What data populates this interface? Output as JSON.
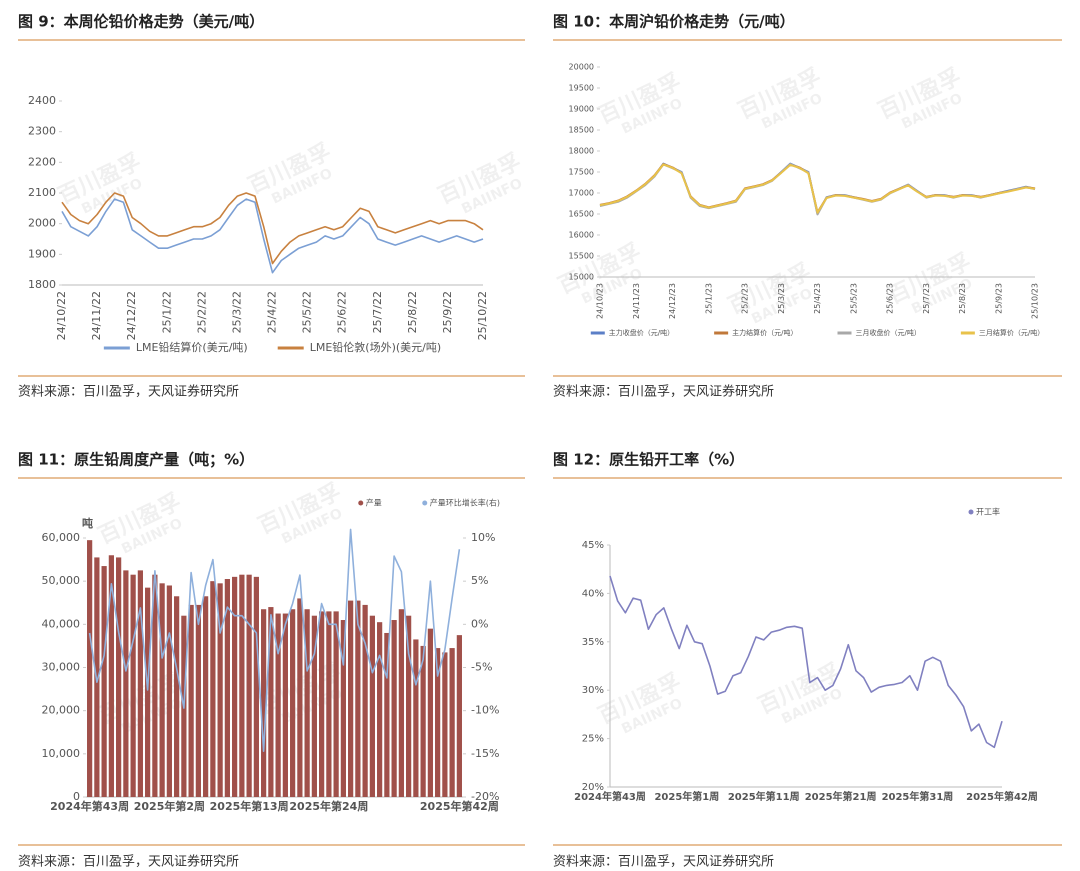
{
  "watermark": {
    "cn": "百川盈孚",
    "en": "BAIINFO"
  },
  "chart_data": [
    {
      "type": "line",
      "title": "图 9：本周伦铅价格走势（美元/吨）",
      "source": "资料来源：百川盈孚，天风证券研究所",
      "categories": [
        "24/10/22",
        null,
        null,
        null,
        "24/11/22",
        null,
        null,
        null,
        "24/12/22",
        null,
        null,
        null,
        "25/1/22",
        null,
        null,
        null,
        "25/2/22",
        null,
        null,
        null,
        "25/3/22",
        null,
        null,
        null,
        "25/4/22",
        null,
        null,
        null,
        "25/5/22",
        null,
        null,
        null,
        "25/6/22",
        null,
        null,
        null,
        "25/7/22",
        null,
        null,
        null,
        "25/8/22",
        null,
        null,
        null,
        "25/9/22",
        null,
        null,
        null,
        "25/10/22"
      ],
      "series": [
        {
          "name": "LME铅结算价(美元/吨)",
          "color": "#7b9fd4",
          "values": [
            2040,
            1990,
            1975,
            1960,
            1990,
            2040,
            2080,
            2070,
            1980,
            1960,
            1940,
            1920,
            1920,
            1930,
            1940,
            1950,
            1950,
            1960,
            1980,
            2020,
            2060,
            2080,
            2070,
            1950,
            1840,
            1880,
            1900,
            1920,
            1930,
            1940,
            1960,
            1950,
            1960,
            1990,
            2020,
            2000,
            1950,
            1940,
            1930,
            1940,
            1950,
            1960,
            1950,
            1940,
            1950,
            1960,
            1950,
            1940,
            1950
          ]
        },
        {
          "name": "LME铅伦敦(场外)(美元/吨)",
          "color": "#c8813f",
          "values": [
            2070,
            2030,
            2010,
            2000,
            2030,
            2070,
            2100,
            2090,
            2020,
            2000,
            1975,
            1960,
            1960,
            1970,
            1980,
            1990,
            1990,
            2000,
            2020,
            2060,
            2090,
            2100,
            2090,
            1990,
            1870,
            1910,
            1940,
            1960,
            1970,
            1980,
            1990,
            1980,
            1990,
            2020,
            2050,
            2040,
            1990,
            1980,
            1970,
            1980,
            1990,
            2000,
            2010,
            2000,
            2010,
            2010,
            2010,
            2000,
            1980
          ]
        }
      ],
      "ylim": [
        1800,
        2400
      ],
      "yticks": [
        1800,
        1900,
        2000,
        2100,
        2200,
        2300,
        2400
      ],
      "legend": "bottom",
      "grid": false
    },
    {
      "type": "line",
      "title": "图 10：本周沪铅价格走势（元/吨）",
      "source": "资料来源：百川盈孚，天风证券研究所",
      "categories": [
        "24/10/23",
        null,
        null,
        null,
        "24/11/23",
        null,
        null,
        null,
        "24/12/23",
        null,
        null,
        null,
        "25/1/23",
        null,
        null,
        null,
        "25/2/23",
        null,
        null,
        null,
        "25/3/23",
        null,
        null,
        null,
        "25/4/23",
        null,
        null,
        null,
        "25/5/23",
        null,
        null,
        null,
        "25/6/23",
        null,
        null,
        null,
        "25/7/23",
        null,
        null,
        null,
        "25/8/23",
        null,
        null,
        null,
        "25/9/23",
        null,
        null,
        null,
        "25/10/23"
      ],
      "series": [
        {
          "name": "主力收盘价（元/吨）",
          "color": "#5b7fc7",
          "values": [
            16700,
            16750,
            16800,
            16900,
            17050,
            17200,
            17400,
            17700,
            17600,
            17500,
            16900,
            16700,
            16650,
            16700,
            16750,
            16800,
            17100,
            17150,
            17200,
            17300,
            17500,
            17700,
            17600,
            17500,
            16500,
            16900,
            16950,
            16950,
            16900,
            16850,
            16800,
            16850,
            17000,
            17100,
            17200,
            17050,
            16900,
            16950,
            16950,
            16900,
            16950,
            16950,
            16900,
            16950,
            17000,
            17050,
            17100,
            17150,
            17100
          ]
        },
        {
          "name": "主力结算价（元/吨）",
          "color": "#c0783a",
          "values": [
            16720,
            16760,
            16820,
            16920,
            17060,
            17220,
            17420,
            17690,
            17610,
            17480,
            16920,
            16720,
            16660,
            16710,
            16760,
            16820,
            17110,
            17160,
            17210,
            17310,
            17490,
            17680,
            17610,
            17480,
            16540,
            16890,
            16950,
            16940,
            16900,
            16860,
            16810,
            16860,
            17010,
            17100,
            17190,
            17040,
            16910,
            16950,
            16940,
            16910,
            16950,
            16940,
            16910,
            16950,
            17000,
            17040,
            17090,
            17140,
            17110
          ]
        },
        {
          "name": "三月收盘价（元/吨）",
          "color": "#a8a8a8",
          "values": [
            16690,
            16740,
            16790,
            16890,
            17040,
            17190,
            17390,
            17680,
            17590,
            17490,
            16890,
            16690,
            16640,
            16690,
            16740,
            16790,
            17090,
            17140,
            17190,
            17290,
            17490,
            17690,
            17590,
            17490,
            16490,
            16890,
            16940,
            16940,
            16890,
            16840,
            16790,
            16840,
            16990,
            17090,
            17190,
            17040,
            16890,
            16940,
            16940,
            16890,
            16940,
            16940,
            16890,
            16940,
            16990,
            17040,
            17090,
            17140,
            17090
          ]
        },
        {
          "name": "三月结算价（元/吨）",
          "color": "#e8c24a",
          "values": [
            16710,
            16750,
            16810,
            16910,
            17050,
            17210,
            17410,
            17680,
            17600,
            17470,
            16910,
            16710,
            16650,
            16700,
            16750,
            16810,
            17100,
            17150,
            17200,
            17300,
            17480,
            17670,
            17600,
            17470,
            16530,
            16880,
            16940,
            16930,
            16890,
            16850,
            16800,
            16850,
            17000,
            17090,
            17180,
            17030,
            16900,
            16940,
            16930,
            16900,
            16940,
            16930,
            16900,
            16940,
            16990,
            17030,
            17080,
            17130,
            17100
          ]
        }
      ],
      "ylim": [
        15000,
        20000
      ],
      "yticks": [
        15000,
        15500,
        16000,
        16500,
        17000,
        17500,
        18000,
        18500,
        19000,
        19500,
        20000
      ],
      "legend": "bottom",
      "grid": false
    },
    {
      "type": "combo",
      "title": "图 11：原生铅周度产量（吨；%）",
      "source": "资料来源：百川盈孚，天风证券研究所",
      "ylabel": "吨",
      "categories": [
        "2024年第43周",
        null,
        null,
        null,
        null,
        null,
        null,
        null,
        null,
        null,
        null,
        "2025年第2周",
        null,
        null,
        null,
        null,
        null,
        null,
        null,
        null,
        null,
        null,
        "2025年第13周",
        null,
        null,
        null,
        null,
        null,
        null,
        null,
        null,
        null,
        null,
        "2025年第24周",
        null,
        null,
        null,
        null,
        null,
        null,
        null,
        null,
        null,
        null,
        null,
        null,
        null,
        null,
        null,
        null,
        null,
        "2025年第42周"
      ],
      "series": [
        {
          "name": "产量",
          "type": "bar",
          "color": "#a0504a",
          "values": [
            59500,
            55500,
            53500,
            56000,
            55500,
            52500,
            51500,
            52500,
            48500,
            51500,
            49500,
            49000,
            46500,
            42000,
            44500,
            44500,
            46500,
            50000,
            49500,
            50500,
            51000,
            51500,
            51500,
            51000,
            43500,
            44000,
            42500,
            42500,
            43500,
            46000,
            43500,
            42000,
            43000,
            43000,
            43000,
            41000,
            45500,
            45500,
            44500,
            42000,
            40500,
            38000,
            41000,
            43500,
            42000,
            36500,
            35000,
            39000,
            34500,
            33500,
            34500,
            37500
          ]
        },
        {
          "name": "产量环比增长率(右)",
          "type": "line",
          "axis": "y2",
          "color": "#8fb0dc",
          "values": [
            -1.0,
            -6.7,
            -3.6,
            4.7,
            -0.9,
            -5.4,
            -1.9,
            1.9,
            -7.6,
            6.2,
            -3.9,
            -1.0,
            -5.1,
            -9.7,
            6.0,
            0.0,
            4.5,
            7.5,
            -1.0,
            2.0,
            1.0,
            1.0,
            0.0,
            -1.0,
            -14.7,
            1.1,
            -3.4,
            0.0,
            2.4,
            5.7,
            -5.4,
            -3.4,
            2.4,
            0.0,
            0.0,
            -4.7,
            11.0,
            0.0,
            -2.2,
            -5.6,
            -3.6,
            -6.2,
            7.9,
            6.1,
            -3.4,
            -7.0,
            -4.1,
            5.0,
            -6.0,
            -2.9,
            3.0,
            8.7
          ]
        }
      ],
      "ylim": [
        0,
        60000
      ],
      "yticks": [
        0,
        {
          "value": 10000,
          "label": "10,000"
        },
        {
          "value": 20000,
          "label": "20,000"
        },
        {
          "value": 30000,
          "label": "30,000"
        },
        {
          "value": 40000,
          "label": "40,000"
        },
        {
          "value": 50000,
          "label": "50,000"
        },
        {
          "value": 60000,
          "label": "60,000"
        }
      ],
      "y2lim": [
        -20,
        10
      ],
      "y2ticks": [
        {
          "value": -20,
          "label": "-20%"
        },
        {
          "value": -15,
          "label": "-15%"
        },
        {
          "value": -10,
          "label": "-10%"
        },
        {
          "value": -5,
          "label": "-5%"
        },
        {
          "value": 0,
          "label": "0%"
        },
        {
          "value": 5,
          "label": "5%"
        },
        {
          "value": 10,
          "label": "10%"
        }
      ],
      "legend": "top-right",
      "grid": false
    },
    {
      "type": "line",
      "title": "图 12：原生铅开工率（%）",
      "source": "资料来源：百川盈孚，天风证券研究所",
      "categories": [
        "2024年第43周",
        null,
        null,
        null,
        null,
        null,
        null,
        null,
        null,
        null,
        "2025年第1周",
        null,
        null,
        null,
        null,
        null,
        null,
        null,
        null,
        null,
        "2025年第11周",
        null,
        null,
        null,
        null,
        null,
        null,
        null,
        null,
        null,
        "2025年第21周",
        null,
        null,
        null,
        null,
        null,
        null,
        null,
        null,
        null,
        "2025年第31周",
        null,
        null,
        null,
        null,
        null,
        null,
        null,
        null,
        null,
        null,
        "2025年第42周"
      ],
      "series": [
        {
          "name": "开工率",
          "color": "#8080c0",
          "values": [
            41.8,
            39.2,
            38,
            39.5,
            39.3,
            36.3,
            37.8,
            38.5,
            36.3,
            34.3,
            36.7,
            35,
            34.8,
            32.5,
            29.6,
            29.9,
            31.5,
            31.8,
            33.5,
            35.5,
            35.2,
            36,
            36.2,
            36.5,
            36.6,
            36.4,
            30.8,
            31.3,
            30,
            30.5,
            32.2,
            34.7,
            32,
            31.3,
            29.8,
            30.3,
            30.5,
            30.6,
            30.8,
            31.5,
            30,
            33,
            33.4,
            33,
            30.5,
            29.5,
            28.3,
            25.8,
            26.5,
            24.6,
            24.1,
            26.8
          ]
        }
      ],
      "ylim": [
        20,
        45
      ],
      "yticks": [
        {
          "value": 20,
          "label": "20%"
        },
        {
          "value": 25,
          "label": "25%"
        },
        {
          "value": 30,
          "label": "30%"
        },
        {
          "value": 35,
          "label": "35%"
        },
        {
          "value": 40,
          "label": "40%"
        },
        {
          "value": 45,
          "label": "45%"
        }
      ],
      "legend": "top-right",
      "grid": false
    }
  ]
}
